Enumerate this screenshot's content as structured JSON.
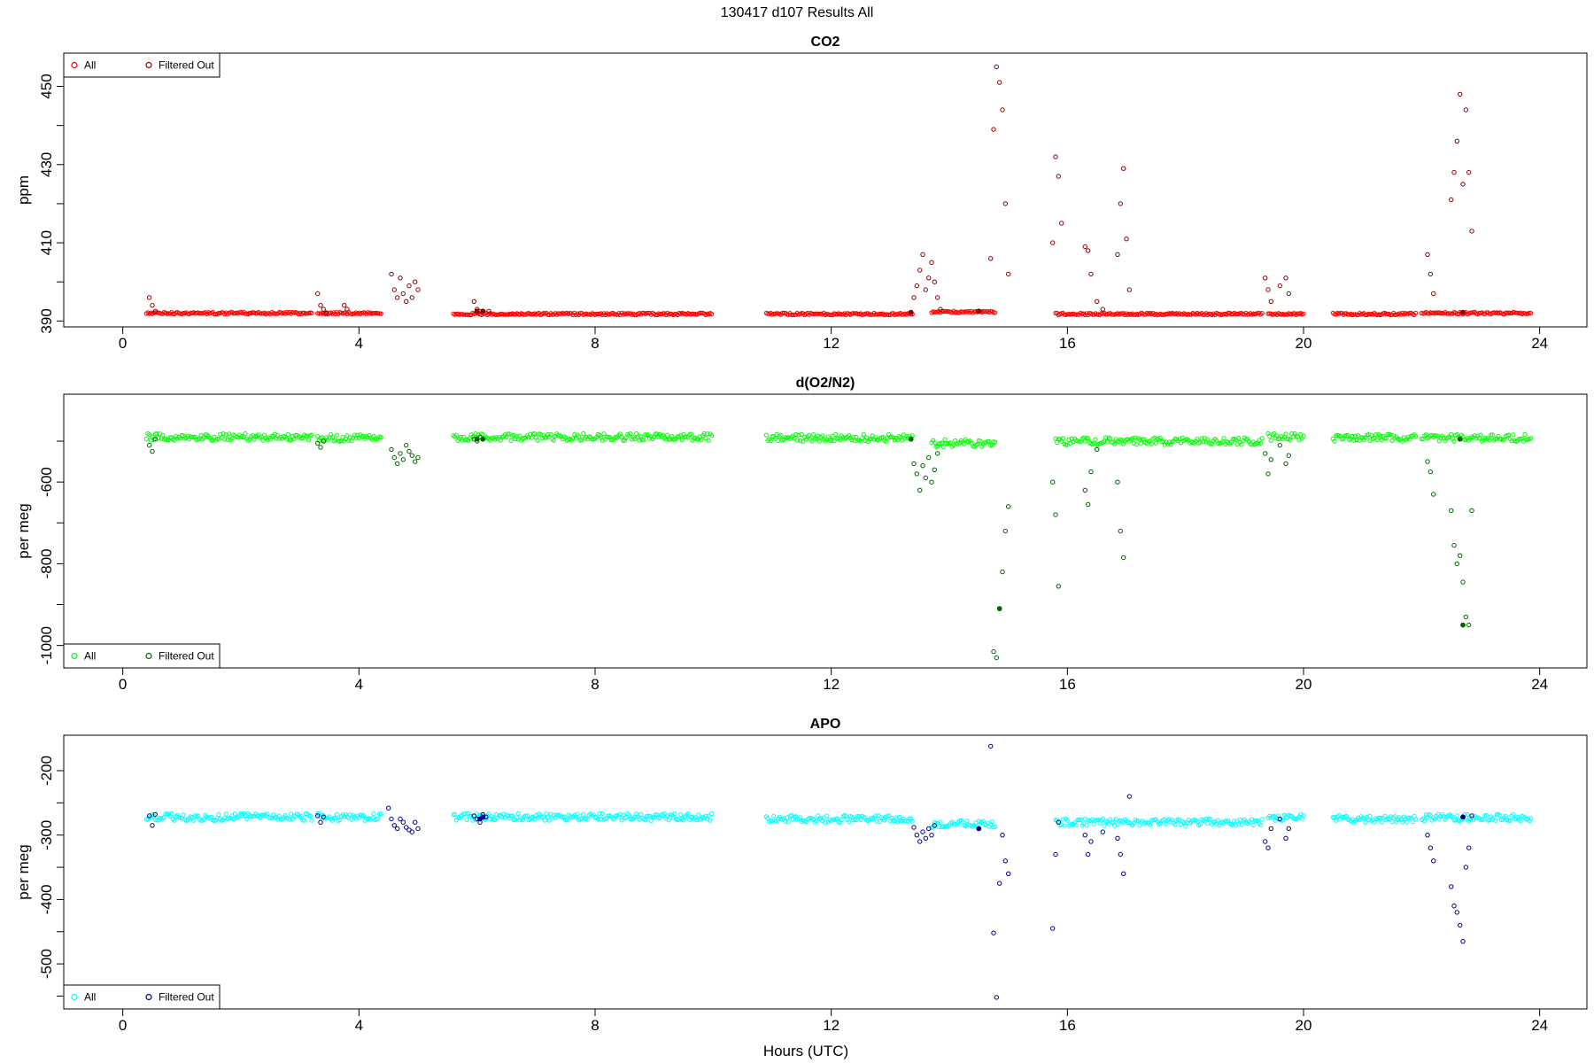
{
  "figure": {
    "title": "130417   d107   Results All",
    "xlabel": "Hours (UTC)"
  },
  "chart_data": [
    {
      "type": "scatter",
      "title": "CO2",
      "xlabel": "",
      "ylabel": "ppm",
      "xlim": [
        -1,
        24.8
      ],
      "ylim": [
        388.5,
        458.5
      ],
      "xticks": [
        0,
        4,
        8,
        12,
        16,
        20,
        24
      ],
      "yticks": [
        390,
        410,
        430,
        450
      ],
      "yminor": [
        400,
        420,
        440
      ],
      "legend": {
        "position": "top-left",
        "entries": [
          "All",
          "Filtered Out"
        ]
      },
      "series": [
        {
          "name": "All",
          "color": "#ff0000",
          "baseline": [
            {
              "start": 0.4,
              "end": 3.2,
              "y": 392
            },
            {
              "start": 3.3,
              "end": 4.4,
              "y": 392
            },
            {
              "start": 5.6,
              "end": 10.0,
              "y": 391.8
            },
            {
              "start": 10.9,
              "end": 13.4,
              "y": 391.8
            },
            {
              "start": 13.7,
              "end": 14.8,
              "y": 392.3
            },
            {
              "start": 15.8,
              "end": 19.3,
              "y": 391.8
            },
            {
              "start": 19.4,
              "end": 20.0,
              "y": 391.8
            },
            {
              "start": 20.5,
              "end": 21.9,
              "y": 391.8
            },
            {
              "start": 22.0,
              "end": 23.85,
              "y": 392
            }
          ]
        },
        {
          "name": "Filtered Out",
          "color": "#8b0000",
          "x": [
            0.45,
            0.5,
            0.55,
            3.3,
            3.35,
            3.4,
            3.45,
            3.75,
            3.8,
            4.55,
            4.6,
            4.65,
            4.7,
            4.75,
            4.8,
            4.85,
            4.9,
            4.95,
            5.0,
            5.95,
            6.0,
            6.05,
            6.1,
            6.2,
            13.4,
            13.45,
            13.5,
            13.55,
            13.6,
            13.65,
            13.7,
            13.75,
            13.8,
            13.85,
            14.7,
            14.75,
            14.8,
            14.85,
            14.9,
            14.95,
            15.0,
            15.75,
            15.8,
            15.85,
            15.9,
            16.3,
            16.35,
            16.4,
            16.5,
            16.6,
            16.85,
            16.9,
            16.95,
            17.0,
            17.05,
            19.35,
            19.4,
            19.45,
            19.6,
            19.7,
            19.75,
            22.1,
            22.15,
            22.2,
            22.5,
            22.55,
            22.6,
            22.65,
            22.7,
            22.75,
            22.8,
            22.85
          ],
          "y": [
            396,
            394,
            392.5,
            397,
            394,
            393,
            392,
            394,
            393,
            402,
            398,
            396,
            401,
            397,
            395,
            399,
            396,
            400,
            398,
            395,
            393,
            392.5,
            392.5,
            392.5,
            396,
            399,
            403,
            407,
            398,
            401,
            405,
            400,
            396,
            393,
            406,
            439,
            455,
            451,
            444,
            420,
            402,
            410,
            432,
            427,
            415,
            409,
            408,
            402,
            395,
            393,
            407,
            420,
            429,
            411,
            398,
            401,
            398,
            395,
            399,
            401,
            397,
            407,
            402,
            397,
            421,
            428,
            436,
            448,
            425,
            444,
            428,
            413
          ],
          "solid_x": [
            6.0,
            6.1,
            13.35,
            14.5,
            22.7
          ],
          "solid_y": [
            392.5,
            392.5,
            392.2,
            392.5,
            392.2
          ]
        }
      ]
    },
    {
      "type": "scatter",
      "title": "d(O2/N2)",
      "xlabel": "",
      "ylabel": "per meg",
      "xlim": [
        -1,
        24.8
      ],
      "ylim": [
        -1055,
        -385
      ],
      "xticks": [
        0,
        4,
        8,
        12,
        16,
        20,
        24
      ],
      "yticks": [
        -600,
        -800,
        -1000
      ],
      "yminor": [
        -500,
        -700,
        -900
      ],
      "legend": {
        "position": "bottom-left",
        "entries": [
          "All",
          "Filtered Out"
        ]
      },
      "series": [
        {
          "name": "All",
          "color": "#00ff00",
          "baseline": [
            {
              "start": 0.4,
              "end": 3.2,
              "y": -490
            },
            {
              "start": 3.3,
              "end": 4.4,
              "y": -492
            },
            {
              "start": 5.6,
              "end": 10.0,
              "y": -490
            },
            {
              "start": 10.9,
              "end": 13.4,
              "y": -492
            },
            {
              "start": 13.7,
              "end": 14.8,
              "y": -505
            },
            {
              "start": 15.8,
              "end": 19.3,
              "y": -500
            },
            {
              "start": 19.4,
              "end": 20.0,
              "y": -490
            },
            {
              "start": 20.5,
              "end": 21.9,
              "y": -492
            },
            {
              "start": 22.0,
              "end": 23.85,
              "y": -492
            }
          ]
        },
        {
          "name": "Filtered Out",
          "color": "#006400",
          "x": [
            0.45,
            0.5,
            0.55,
            3.3,
            3.35,
            3.4,
            4.55,
            4.6,
            4.65,
            4.7,
            4.75,
            4.8,
            4.85,
            4.9,
            4.95,
            5.0,
            5.95,
            6.0,
            6.05,
            13.4,
            13.45,
            13.5,
            13.55,
            13.6,
            13.65,
            13.7,
            13.75,
            13.8,
            14.75,
            14.8,
            14.85,
            14.9,
            14.95,
            15.0,
            15.75,
            15.8,
            15.85,
            16.3,
            16.35,
            16.4,
            16.5,
            16.85,
            16.9,
            16.95,
            19.35,
            19.4,
            19.45,
            19.6,
            19.7,
            19.75,
            22.1,
            22.15,
            22.2,
            22.5,
            22.55,
            22.6,
            22.65,
            22.7,
            22.75,
            22.8,
            22.85
          ],
          "y": [
            -510,
            -525,
            -495,
            -505,
            -515,
            -500,
            -520,
            -540,
            -555,
            -530,
            -545,
            -510,
            -525,
            -535,
            -550,
            -540,
            -495,
            -500,
            -490,
            -555,
            -580,
            -620,
            -560,
            -590,
            -540,
            -600,
            -570,
            -530,
            -1015,
            -1030,
            -910,
            -820,
            -720,
            -660,
            -600,
            -680,
            -855,
            -620,
            -655,
            -575,
            -520,
            -600,
            -720,
            -785,
            -530,
            -580,
            -545,
            -510,
            -555,
            -535,
            -550,
            -575,
            -630,
            -670,
            -755,
            -800,
            -780,
            -845,
            -930,
            -950,
            -670
          ],
          "solid_x": [
            6.0,
            6.1,
            13.35,
            14.85,
            22.7,
            22.65
          ],
          "solid_y": [
            -495,
            -495,
            -495,
            -910,
            -950,
            -495
          ]
        }
      ]
    },
    {
      "type": "scatter",
      "title": "APO",
      "xlabel": "Hours (UTC)",
      "ylabel": "per meg",
      "xlim": [
        -1,
        24.8
      ],
      "ylim": [
        -570,
        -145
      ],
      "xticks": [
        0,
        4,
        8,
        12,
        16,
        20,
        24
      ],
      "yticks": [
        -200,
        -300,
        -400,
        -500
      ],
      "yminor": [
        -250,
        -350,
        -450,
        -550
      ],
      "legend": {
        "position": "bottom-left",
        "entries": [
          "All",
          "Filtered Out"
        ]
      },
      "series": [
        {
          "name": "All",
          "color": "#00ffff",
          "baseline": [
            {
              "start": 0.4,
              "end": 3.2,
              "y": -272
            },
            {
              "start": 3.3,
              "end": 4.4,
              "y": -272
            },
            {
              "start": 5.6,
              "end": 10.0,
              "y": -272
            },
            {
              "start": 10.9,
              "end": 13.4,
              "y": -275
            },
            {
              "start": 13.7,
              "end": 14.8,
              "y": -283
            },
            {
              "start": 15.8,
              "end": 19.3,
              "y": -280
            },
            {
              "start": 19.4,
              "end": 20.0,
              "y": -272
            },
            {
              "start": 20.5,
              "end": 21.9,
              "y": -275
            },
            {
              "start": 22.0,
              "end": 23.85,
              "y": -273
            }
          ]
        },
        {
          "name": "Filtered Out",
          "color": "#00008b",
          "x": [
            0.45,
            0.5,
            0.55,
            3.3,
            3.35,
            3.4,
            4.5,
            4.55,
            4.6,
            4.65,
            4.7,
            4.75,
            4.8,
            4.85,
            4.9,
            4.95,
            5.0,
            5.95,
            6.0,
            6.05,
            6.1,
            6.15,
            13.4,
            13.45,
            13.5,
            13.55,
            13.6,
            13.65,
            13.7,
            13.75,
            14.7,
            14.75,
            14.8,
            14.85,
            14.9,
            14.95,
            15.0,
            15.75,
            15.8,
            15.85,
            16.3,
            16.35,
            16.4,
            16.6,
            16.85,
            16.9,
            16.95,
            17.05,
            19.35,
            19.4,
            19.45,
            19.6,
            19.7,
            19.75,
            22.1,
            22.15,
            22.2,
            22.5,
            22.55,
            22.6,
            22.65,
            22.7,
            22.75,
            22.8,
            22.85
          ],
          "y": [
            -270,
            -285,
            -268,
            -270,
            -280,
            -272,
            -258,
            -275,
            -285,
            -290,
            -275,
            -280,
            -288,
            -292,
            -295,
            -280,
            -290,
            -270,
            -275,
            -280,
            -268,
            -272,
            -288,
            -300,
            -310,
            -295,
            -305,
            -290,
            -300,
            -285,
            -162,
            -452,
            -552,
            -375,
            -300,
            -340,
            -360,
            -445,
            -330,
            -280,
            -300,
            -330,
            -310,
            -295,
            -305,
            -330,
            -360,
            -240,
            -310,
            -320,
            -290,
            -275,
            -305,
            -290,
            -300,
            -320,
            -340,
            -380,
            -410,
            -420,
            -440,
            -465,
            -350,
            -320,
            -270
          ],
          "solid_x": [
            6.05,
            6.1,
            14.5,
            22.7
          ],
          "solid_y": [
            -275,
            -272,
            -290,
            -272
          ]
        }
      ]
    }
  ]
}
